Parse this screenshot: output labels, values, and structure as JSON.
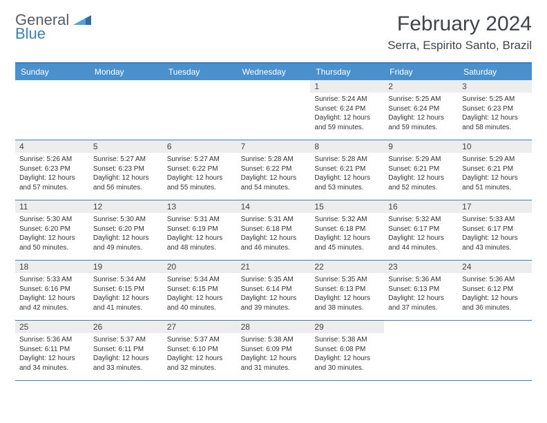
{
  "logo": {
    "text_general": "General",
    "text_blue": "Blue",
    "triangle_color": "#2d6ea8"
  },
  "header": {
    "title": "February 2024",
    "location": "Serra, Espirito Santo, Brazil"
  },
  "colors": {
    "header_bg": "#4a90cc",
    "border": "#3b7fb9",
    "daynum_bg": "#ededed",
    "text": "#333333"
  },
  "day_names": [
    "Sunday",
    "Monday",
    "Tuesday",
    "Wednesday",
    "Thursday",
    "Friday",
    "Saturday"
  ],
  "weeks": [
    [
      {
        "empty": true
      },
      {
        "empty": true
      },
      {
        "empty": true
      },
      {
        "empty": true
      },
      {
        "day": "1",
        "sunrise": "Sunrise: 5:24 AM",
        "sunset": "Sunset: 6:24 PM",
        "daylight": "Daylight: 12 hours and 59 minutes."
      },
      {
        "day": "2",
        "sunrise": "Sunrise: 5:25 AM",
        "sunset": "Sunset: 6:24 PM",
        "daylight": "Daylight: 12 hours and 59 minutes."
      },
      {
        "day": "3",
        "sunrise": "Sunrise: 5:25 AM",
        "sunset": "Sunset: 6:23 PM",
        "daylight": "Daylight: 12 hours and 58 minutes."
      }
    ],
    [
      {
        "day": "4",
        "sunrise": "Sunrise: 5:26 AM",
        "sunset": "Sunset: 6:23 PM",
        "daylight": "Daylight: 12 hours and 57 minutes."
      },
      {
        "day": "5",
        "sunrise": "Sunrise: 5:27 AM",
        "sunset": "Sunset: 6:23 PM",
        "daylight": "Daylight: 12 hours and 56 minutes."
      },
      {
        "day": "6",
        "sunrise": "Sunrise: 5:27 AM",
        "sunset": "Sunset: 6:22 PM",
        "daylight": "Daylight: 12 hours and 55 minutes."
      },
      {
        "day": "7",
        "sunrise": "Sunrise: 5:28 AM",
        "sunset": "Sunset: 6:22 PM",
        "daylight": "Daylight: 12 hours and 54 minutes."
      },
      {
        "day": "8",
        "sunrise": "Sunrise: 5:28 AM",
        "sunset": "Sunset: 6:21 PM",
        "daylight": "Daylight: 12 hours and 53 minutes."
      },
      {
        "day": "9",
        "sunrise": "Sunrise: 5:29 AM",
        "sunset": "Sunset: 6:21 PM",
        "daylight": "Daylight: 12 hours and 52 minutes."
      },
      {
        "day": "10",
        "sunrise": "Sunrise: 5:29 AM",
        "sunset": "Sunset: 6:21 PM",
        "daylight": "Daylight: 12 hours and 51 minutes."
      }
    ],
    [
      {
        "day": "11",
        "sunrise": "Sunrise: 5:30 AM",
        "sunset": "Sunset: 6:20 PM",
        "daylight": "Daylight: 12 hours and 50 minutes."
      },
      {
        "day": "12",
        "sunrise": "Sunrise: 5:30 AM",
        "sunset": "Sunset: 6:20 PM",
        "daylight": "Daylight: 12 hours and 49 minutes."
      },
      {
        "day": "13",
        "sunrise": "Sunrise: 5:31 AM",
        "sunset": "Sunset: 6:19 PM",
        "daylight": "Daylight: 12 hours and 48 minutes."
      },
      {
        "day": "14",
        "sunrise": "Sunrise: 5:31 AM",
        "sunset": "Sunset: 6:18 PM",
        "daylight": "Daylight: 12 hours and 46 minutes."
      },
      {
        "day": "15",
        "sunrise": "Sunrise: 5:32 AM",
        "sunset": "Sunset: 6:18 PM",
        "daylight": "Daylight: 12 hours and 45 minutes."
      },
      {
        "day": "16",
        "sunrise": "Sunrise: 5:32 AM",
        "sunset": "Sunset: 6:17 PM",
        "daylight": "Daylight: 12 hours and 44 minutes."
      },
      {
        "day": "17",
        "sunrise": "Sunrise: 5:33 AM",
        "sunset": "Sunset: 6:17 PM",
        "daylight": "Daylight: 12 hours and 43 minutes."
      }
    ],
    [
      {
        "day": "18",
        "sunrise": "Sunrise: 5:33 AM",
        "sunset": "Sunset: 6:16 PM",
        "daylight": "Daylight: 12 hours and 42 minutes."
      },
      {
        "day": "19",
        "sunrise": "Sunrise: 5:34 AM",
        "sunset": "Sunset: 6:15 PM",
        "daylight": "Daylight: 12 hours and 41 minutes."
      },
      {
        "day": "20",
        "sunrise": "Sunrise: 5:34 AM",
        "sunset": "Sunset: 6:15 PM",
        "daylight": "Daylight: 12 hours and 40 minutes."
      },
      {
        "day": "21",
        "sunrise": "Sunrise: 5:35 AM",
        "sunset": "Sunset: 6:14 PM",
        "daylight": "Daylight: 12 hours and 39 minutes."
      },
      {
        "day": "22",
        "sunrise": "Sunrise: 5:35 AM",
        "sunset": "Sunset: 6:13 PM",
        "daylight": "Daylight: 12 hours and 38 minutes."
      },
      {
        "day": "23",
        "sunrise": "Sunrise: 5:36 AM",
        "sunset": "Sunset: 6:13 PM",
        "daylight": "Daylight: 12 hours and 37 minutes."
      },
      {
        "day": "24",
        "sunrise": "Sunrise: 5:36 AM",
        "sunset": "Sunset: 6:12 PM",
        "daylight": "Daylight: 12 hours and 36 minutes."
      }
    ],
    [
      {
        "day": "25",
        "sunrise": "Sunrise: 5:36 AM",
        "sunset": "Sunset: 6:11 PM",
        "daylight": "Daylight: 12 hours and 34 minutes."
      },
      {
        "day": "26",
        "sunrise": "Sunrise: 5:37 AM",
        "sunset": "Sunset: 6:11 PM",
        "daylight": "Daylight: 12 hours and 33 minutes."
      },
      {
        "day": "27",
        "sunrise": "Sunrise: 5:37 AM",
        "sunset": "Sunset: 6:10 PM",
        "daylight": "Daylight: 12 hours and 32 minutes."
      },
      {
        "day": "28",
        "sunrise": "Sunrise: 5:38 AM",
        "sunset": "Sunset: 6:09 PM",
        "daylight": "Daylight: 12 hours and 31 minutes."
      },
      {
        "day": "29",
        "sunrise": "Sunrise: 5:38 AM",
        "sunset": "Sunset: 6:08 PM",
        "daylight": "Daylight: 12 hours and 30 minutes."
      },
      {
        "empty": true
      },
      {
        "empty": true
      }
    ]
  ]
}
